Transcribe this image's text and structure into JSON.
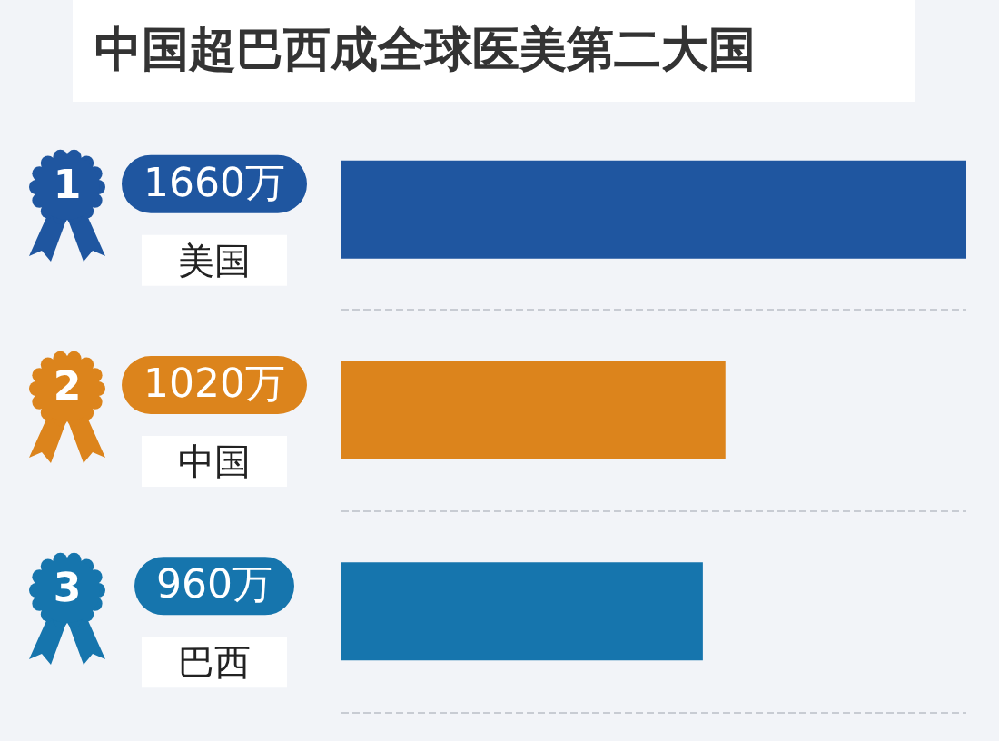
{
  "chart_data": {
    "type": "bar",
    "orientation": "horizontal",
    "title": "中国超巴西成全球医美第二大国",
    "categories": [
      "美国",
      "中国",
      "巴西"
    ],
    "values": [
      1660,
      1020,
      960
    ],
    "value_labels": [
      "1660万",
      "1020万",
      "960万"
    ],
    "colors": [
      "#1f56a0",
      "#dc841c",
      "#1675ad"
    ],
    "annotations": [
      "1",
      "2",
      "3"
    ],
    "grid": "y",
    "tick_labels": "y"
  }
}
